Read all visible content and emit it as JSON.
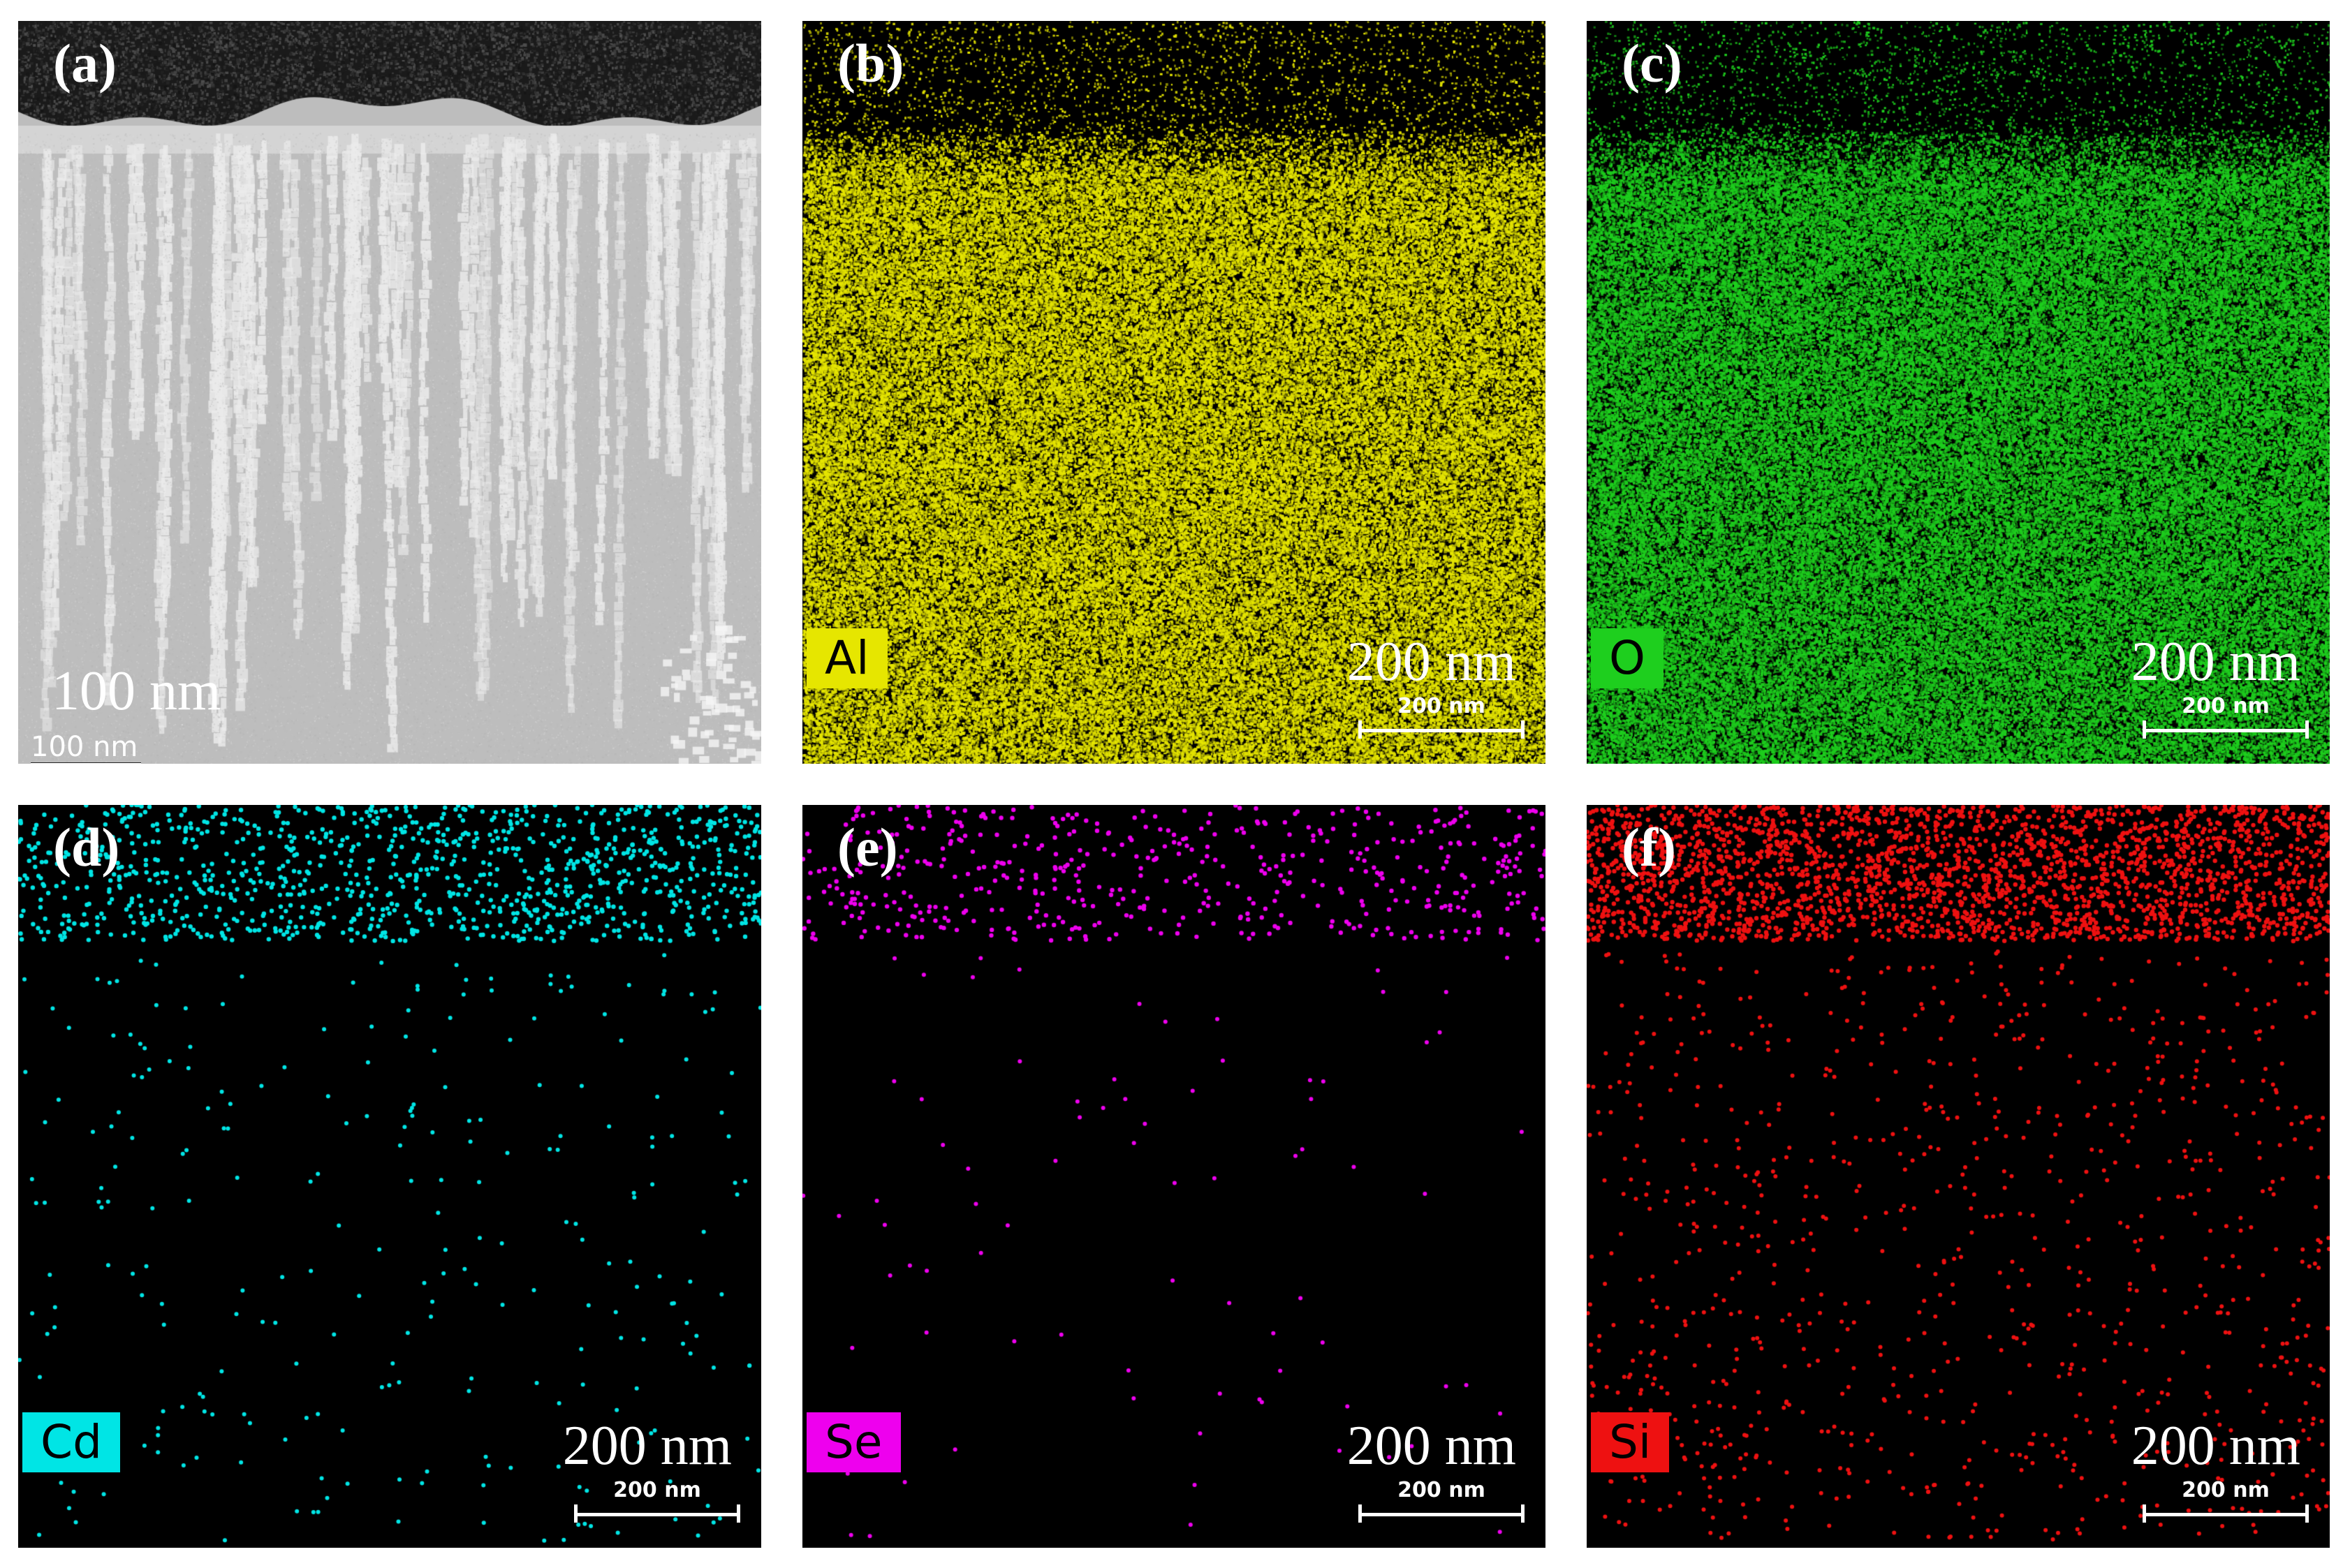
{
  "figure": {
    "panels": [
      {
        "id": "a",
        "label": "(a)",
        "kind": "tem",
        "big_scale": "100 nm",
        "small_scale": "100 nm",
        "element": "",
        "color": "#e0e0e0"
      },
      {
        "id": "b",
        "label": "(b)",
        "kind": "map",
        "big_scale": "200 nm",
        "small_scale": "200 nm",
        "element": "Al",
        "color": "#e6e600",
        "distribution": "bulk"
      },
      {
        "id": "c",
        "label": "(c)",
        "kind": "map",
        "big_scale": "200 nm",
        "small_scale": "200 nm",
        "element": "O",
        "color": "#1ecf1e",
        "distribution": "bulk"
      },
      {
        "id": "d",
        "label": "(d)",
        "kind": "map",
        "big_scale": "200 nm",
        "small_scale": "200 nm",
        "element": "Cd",
        "color": "#00e5e5",
        "distribution": "surface"
      },
      {
        "id": "e",
        "label": "(e)",
        "kind": "map",
        "big_scale": "200 nm",
        "small_scale": "200 nm",
        "element": "Se",
        "color": "#ee00ee",
        "distribution": "surface"
      },
      {
        "id": "f",
        "label": "(f)",
        "kind": "map",
        "big_scale": "200 nm",
        "small_scale": "200 nm",
        "element": "Si",
        "color": "#ee1111",
        "distribution": "surface"
      }
    ]
  }
}
